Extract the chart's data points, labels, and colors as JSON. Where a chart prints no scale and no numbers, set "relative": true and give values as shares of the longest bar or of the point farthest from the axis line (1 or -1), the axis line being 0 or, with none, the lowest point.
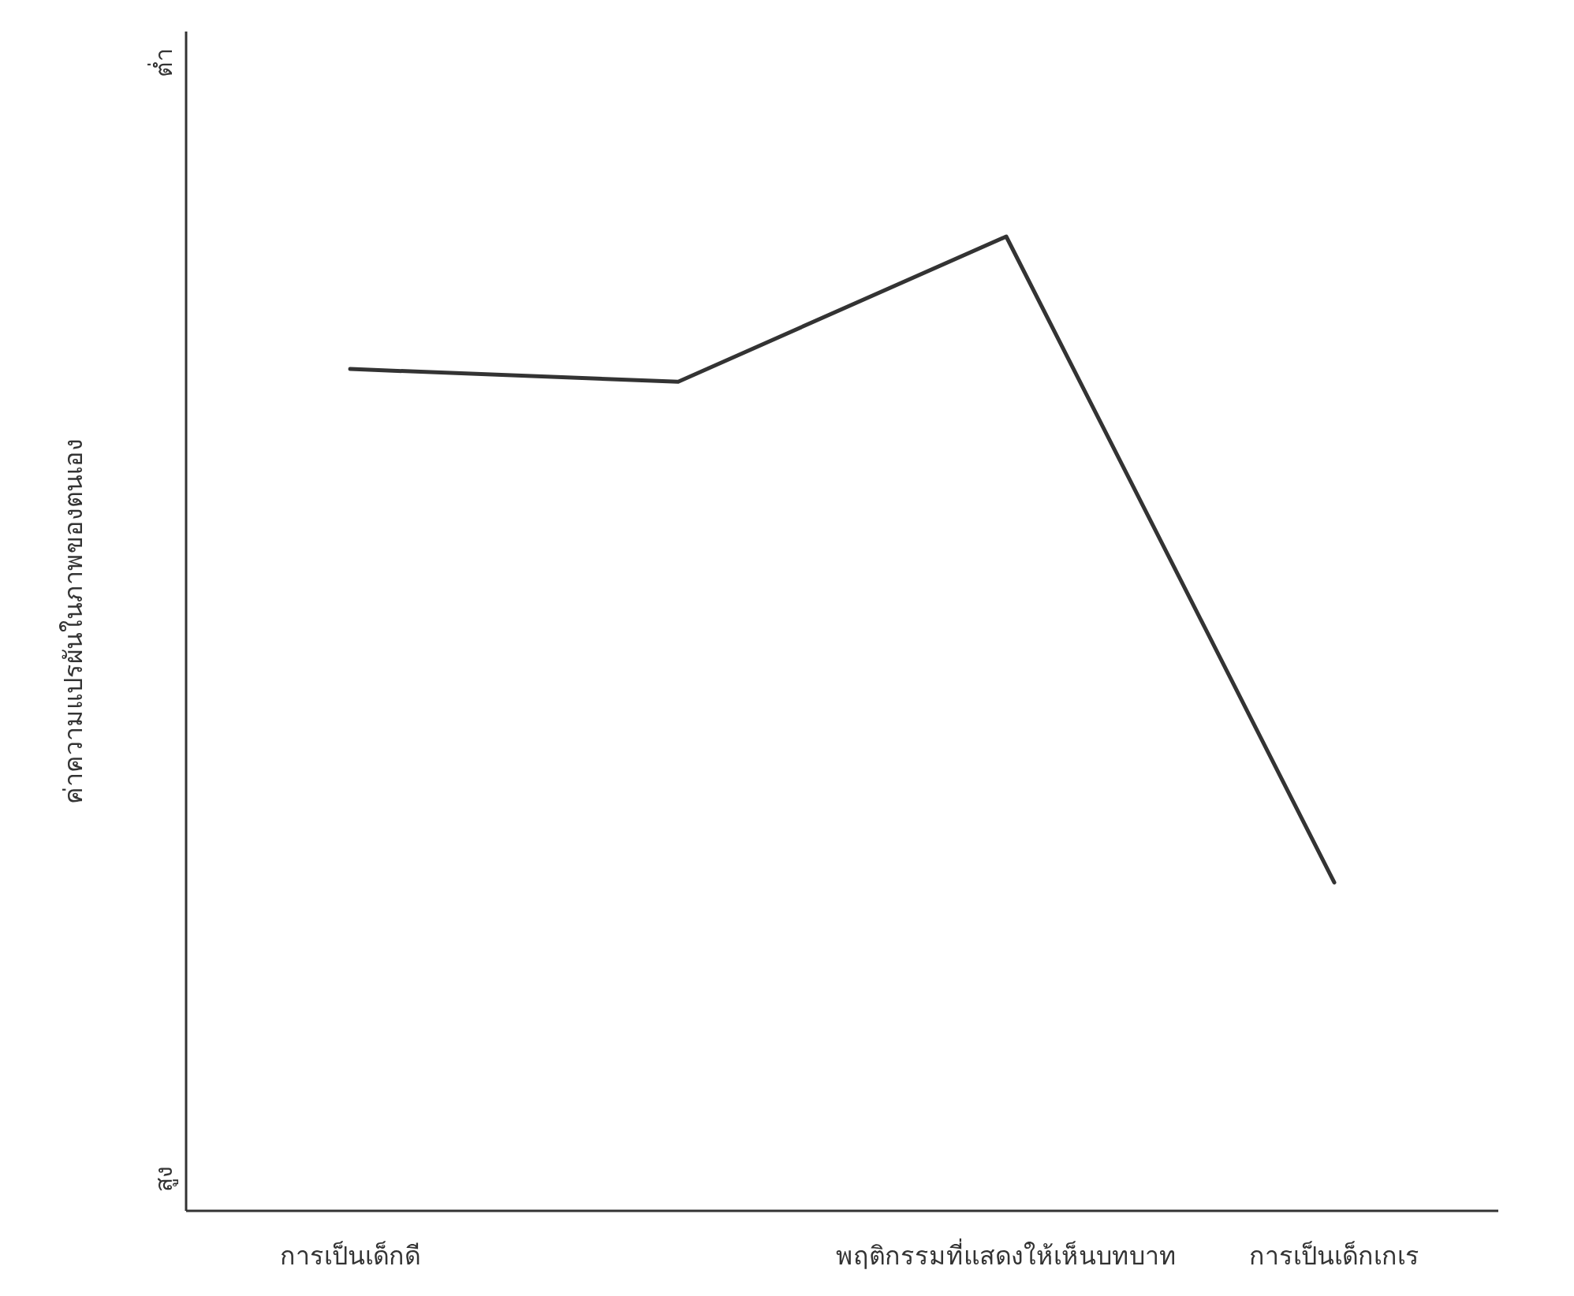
{
  "chart_data": {
    "type": "line",
    "relative": true,
    "ylabel": "ค่าความแปรผันในภาพของตนเอง",
    "categories": [
      "การเป็นเด็กดี",
      null,
      "พฤติกรรมที่แสดงให้เห็นบทบาท",
      "การเป็นเด็กเกเร"
    ],
    "series": [
      {
        "color": "#333333",
        "values": [
          0.864,
          0.851,
          1,
          0.337
        ]
      }
    ],
    "annotations": [
      "ต่ำ",
      "สูง"
    ],
    "marker": "none",
    "line_style": "solid",
    "grid": false,
    "legend": false
  }
}
